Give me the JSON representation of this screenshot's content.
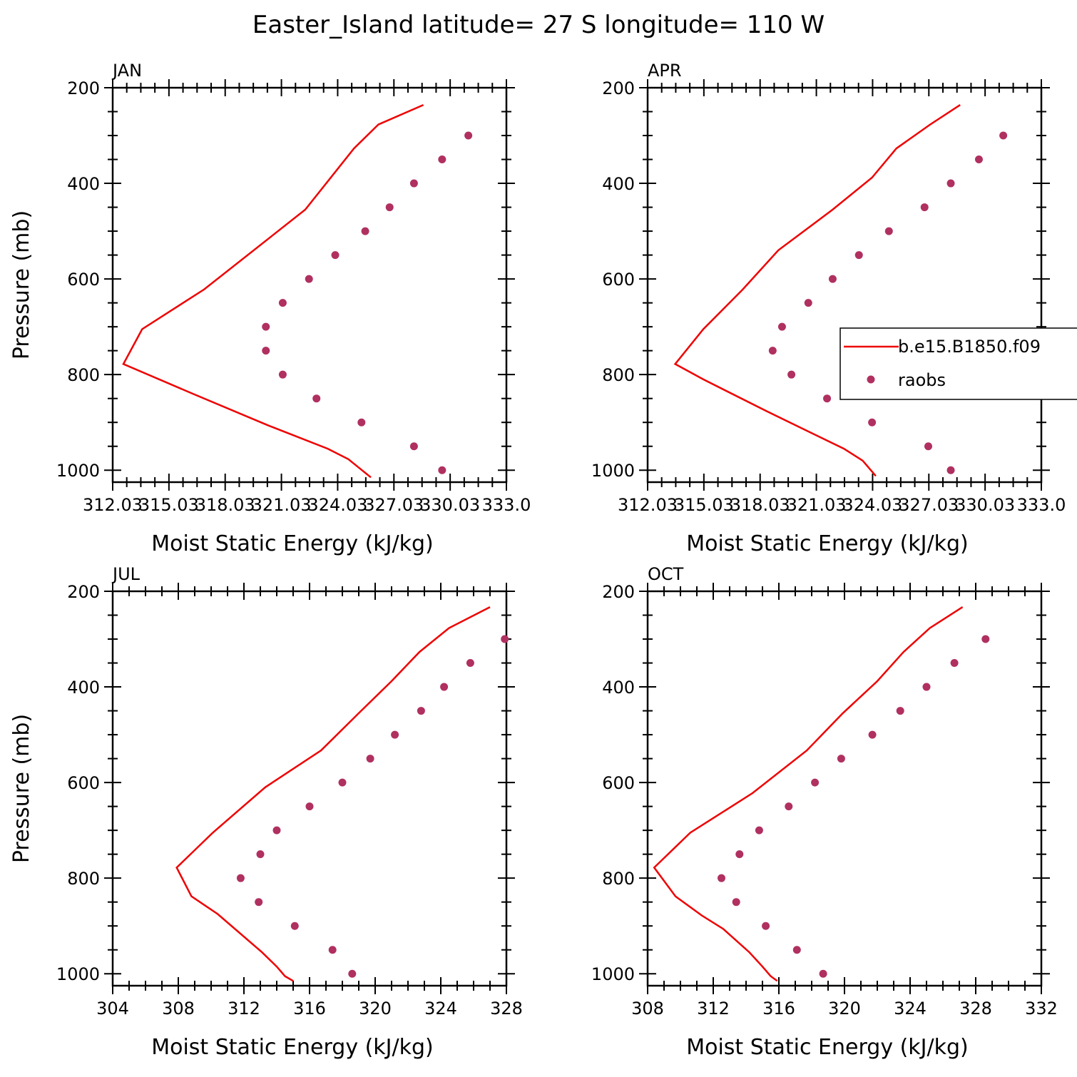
{
  "title": "Easter_Island  latitude= 27 S longitude= 110 W",
  "colors": {
    "model": "#ee0000",
    "obs": "#b03060",
    "axis": "#000000"
  },
  "legend": {
    "model_label": "b.e15.B1850.f09",
    "obs_label": "raobs"
  },
  "chart_data": [
    {
      "type": "line",
      "panel_title": "JAN",
      "xlabel": "Moist Static Energy (kJ/kg)",
      "ylabel": "Pressure (mb)",
      "xlim": [
        312.03,
        333.03
      ],
      "ylim": [
        200,
        1025
      ],
      "x_ticks": [
        "312.03",
        "315.03",
        "318.03",
        "321.03",
        "324.03",
        "327.03",
        "330.03",
        "333.0"
      ],
      "x_tick_values": [
        312.03,
        315.03,
        318.03,
        321.03,
        324.03,
        327.03,
        330.03,
        333.03
      ],
      "y_ticks": [
        200,
        400,
        600,
        800,
        1000
      ],
      "y_invert": true,
      "series": [
        {
          "name": "b.e15.B1850.f09",
          "kind": "line",
          "points": [
            [
              328.6,
              236
            ],
            [
              326.2,
              277
            ],
            [
              324.9,
              327
            ],
            [
              322.3,
              455
            ],
            [
              316.9,
              622
            ],
            [
              313.6,
              705
            ],
            [
              312.6,
              778
            ],
            [
              316.3,
              840
            ],
            [
              320.3,
              906
            ],
            [
              323.5,
              955
            ],
            [
              324.6,
              977
            ],
            [
              325.8,
              1015
            ]
          ]
        },
        {
          "name": "raobs",
          "kind": "markers",
          "points": [
            [
              331.0,
              300
            ],
            [
              329.6,
              350
            ],
            [
              328.1,
              400
            ],
            [
              326.8,
              450
            ],
            [
              325.5,
              500
            ],
            [
              323.9,
              550
            ],
            [
              322.5,
              600
            ],
            [
              321.1,
              650
            ],
            [
              320.2,
              700
            ],
            [
              320.2,
              750
            ],
            [
              321.1,
              800
            ],
            [
              322.9,
              850
            ],
            [
              325.3,
              900
            ],
            [
              328.1,
              950
            ],
            [
              329.6,
              1000
            ]
          ]
        }
      ]
    },
    {
      "type": "line",
      "panel_title": "APR",
      "xlabel": "Moist Static Energy (kJ/kg)",
      "ylabel": "",
      "xlim": [
        312.03,
        333.03
      ],
      "ylim": [
        200,
        1025
      ],
      "x_ticks": [
        "312.03",
        "315.03",
        "318.03",
        "321.03",
        "324.03",
        "327.03",
        "330.03",
        "333.0"
      ],
      "x_tick_values": [
        312.03,
        315.03,
        318.03,
        321.03,
        324.03,
        327.03,
        330.03,
        333.03
      ],
      "y_ticks": [
        200,
        400,
        600,
        800,
        1000
      ],
      "y_invert": true,
      "series": [
        {
          "name": "b.e15.B1850.f09",
          "kind": "line",
          "points": [
            [
              328.7,
              236
            ],
            [
              327.1,
              277
            ],
            [
              325.3,
              327
            ],
            [
              324.0,
              388
            ],
            [
              321.9,
              455
            ],
            [
              319.0,
              540
            ],
            [
              317.1,
              622
            ],
            [
              315.0,
              705
            ],
            [
              313.5,
              778
            ],
            [
              315.0,
              810
            ],
            [
              318.4,
              877
            ],
            [
              322.5,
              955
            ],
            [
              323.5,
              980
            ],
            [
              324.2,
              1012
            ]
          ]
        },
        {
          "name": "raobs",
          "kind": "markers",
          "points": [
            [
              331.0,
              300
            ],
            [
              329.7,
              350
            ],
            [
              328.2,
              400
            ],
            [
              326.8,
              450
            ],
            [
              324.9,
              500
            ],
            [
              323.3,
              550
            ],
            [
              321.9,
              600
            ],
            [
              320.6,
              650
            ],
            [
              319.2,
              700
            ],
            [
              318.7,
              750
            ],
            [
              319.7,
              800
            ],
            [
              321.6,
              850
            ],
            [
              324.0,
              900
            ],
            [
              327.0,
              950
            ],
            [
              328.2,
              1000
            ]
          ]
        }
      ]
    },
    {
      "type": "line",
      "panel_title": "JUL",
      "xlabel": "Moist Static Energy (kJ/kg)",
      "ylabel": "Pressure (mb)",
      "xlim": [
        304,
        328
      ],
      "ylim": [
        200,
        1025
      ],
      "x_ticks": [
        "304",
        "308",
        "312",
        "316",
        "320",
        "324",
        "328"
      ],
      "x_tick_values": [
        304,
        308,
        312,
        316,
        320,
        324,
        328
      ],
      "y_ticks": [
        200,
        400,
        600,
        800,
        1000
      ],
      "y_invert": true,
      "series": [
        {
          "name": "b.e15.B1850.f09",
          "kind": "line",
          "points": [
            [
              327.0,
              233
            ],
            [
              324.5,
              277
            ],
            [
              322.7,
              327
            ],
            [
              321.0,
              388
            ],
            [
              319.0,
              455
            ],
            [
              316.7,
              533
            ],
            [
              313.3,
              610
            ],
            [
              310.1,
              705
            ],
            [
              307.9,
              778
            ],
            [
              308.8,
              838
            ],
            [
              310.4,
              875
            ],
            [
              313.1,
              955
            ],
            [
              314.0,
              985
            ],
            [
              314.5,
              1005
            ],
            [
              315.0,
              1015
            ]
          ]
        },
        {
          "name": "raobs",
          "kind": "markers",
          "points": [
            [
              327.9,
              300
            ],
            [
              325.8,
              350
            ],
            [
              324.2,
              400
            ],
            [
              322.8,
              450
            ],
            [
              321.2,
              500
            ],
            [
              319.7,
              550
            ],
            [
              318.0,
              600
            ],
            [
              316.0,
              650
            ],
            [
              314.0,
              700
            ],
            [
              313.0,
              750
            ],
            [
              311.8,
              800
            ],
            [
              312.9,
              850
            ],
            [
              315.1,
              900
            ],
            [
              317.4,
              950
            ],
            [
              318.6,
              1000
            ]
          ]
        }
      ]
    },
    {
      "type": "line",
      "panel_title": "OCT",
      "xlabel": "Moist Static Energy (kJ/kg)",
      "ylabel": "",
      "xlim": [
        308,
        332
      ],
      "ylim": [
        200,
        1025
      ],
      "x_ticks": [
        "308",
        "312",
        "316",
        "320",
        "324",
        "328",
        "332"
      ],
      "x_tick_values": [
        308,
        312,
        316,
        320,
        324,
        328,
        332
      ],
      "y_ticks": [
        200,
        400,
        600,
        800,
        1000
      ],
      "y_invert": true,
      "series": [
        {
          "name": "b.e15.B1850.f09",
          "kind": "line",
          "points": [
            [
              327.2,
              233
            ],
            [
              325.2,
              277
            ],
            [
              323.6,
              327
            ],
            [
              322.0,
              388
            ],
            [
              319.9,
              455
            ],
            [
              317.7,
              533
            ],
            [
              314.4,
              622
            ],
            [
              310.6,
              705
            ],
            [
              308.4,
              778
            ],
            [
              309.7,
              838
            ],
            [
              311.3,
              878
            ],
            [
              312.6,
              906
            ],
            [
              314.2,
              955
            ],
            [
              315.0,
              985
            ],
            [
              315.5,
              1005
            ],
            [
              315.9,
              1015
            ]
          ]
        },
        {
          "name": "raobs",
          "kind": "markers",
          "points": [
            [
              328.6,
              300
            ],
            [
              326.7,
              350
            ],
            [
              325.0,
              400
            ],
            [
              323.4,
              450
            ],
            [
              321.7,
              500
            ],
            [
              319.8,
              550
            ],
            [
              318.2,
              600
            ],
            [
              316.6,
              650
            ],
            [
              314.8,
              700
            ],
            [
              313.6,
              750
            ],
            [
              312.5,
              800
            ],
            [
              313.4,
              850
            ],
            [
              315.2,
              900
            ],
            [
              317.1,
              950
            ],
            [
              318.7,
              1000
            ]
          ]
        }
      ]
    }
  ]
}
